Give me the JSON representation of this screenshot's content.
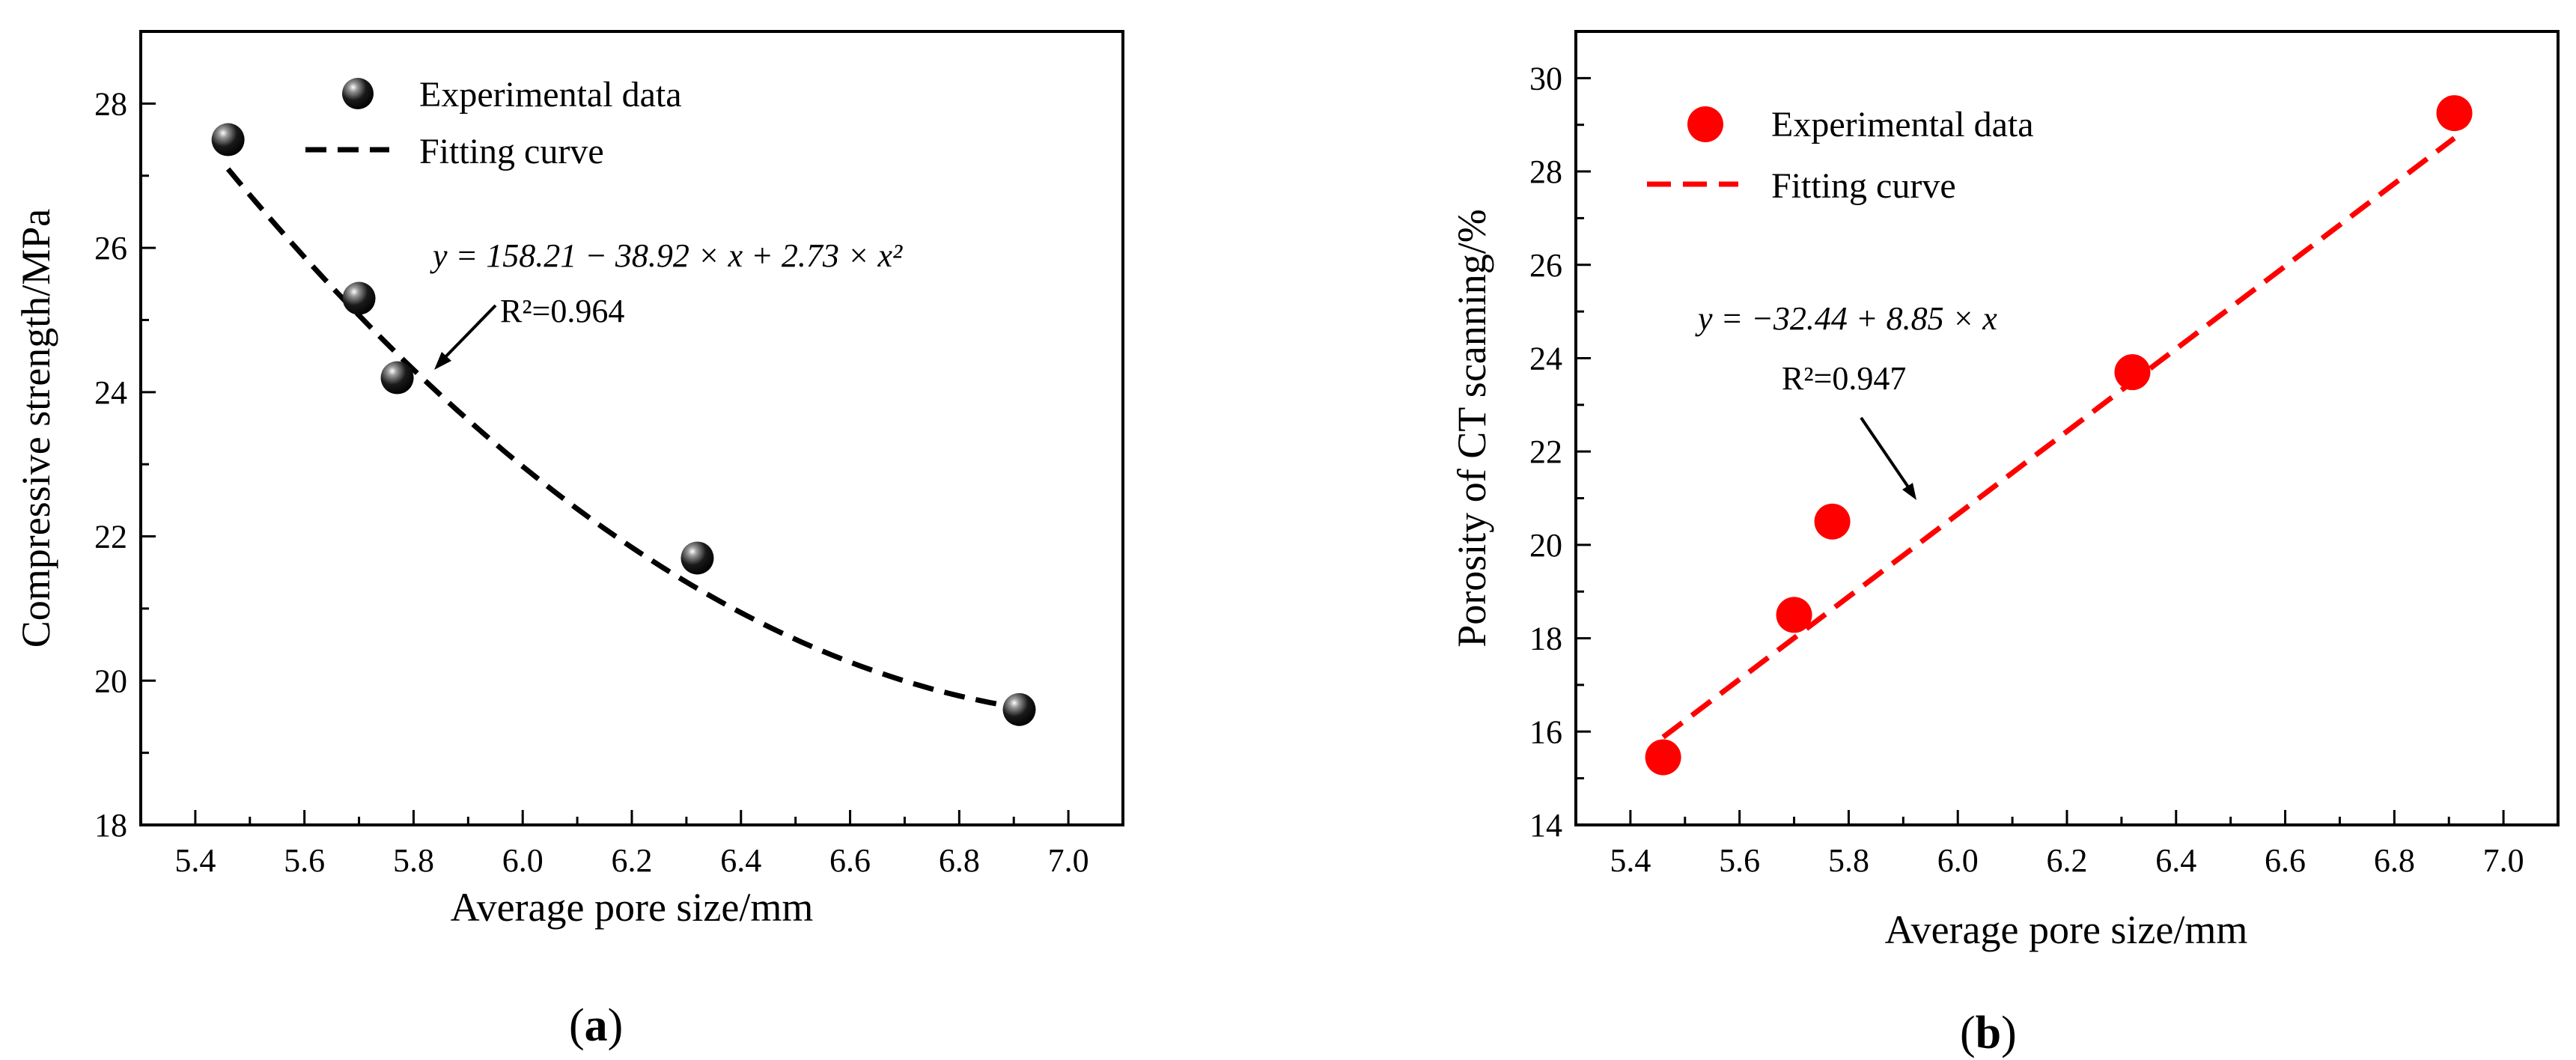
{
  "chart_data": [
    {
      "type": "scatter",
      "panel_label": "a",
      "xlabel": "Average pore size/mm",
      "ylabel": "Compressive strength/MPa",
      "xlim": [
        5.3,
        7.1
      ],
      "ylim": [
        18,
        29
      ],
      "xticks": [
        "5.4",
        "5.6",
        "5.8",
        "6.0",
        "6.2",
        "6.4",
        "6.6",
        "6.8",
        "7.0"
      ],
      "yticks": [
        "18",
        "20",
        "22",
        "24",
        "26",
        "28"
      ],
      "series": [
        {
          "name": "Experimental data",
          "marker": "sphere",
          "color": "#111111",
          "points": [
            {
              "x": 5.46,
              "y": 27.5
            },
            {
              "x": 5.7,
              "y": 25.3
            },
            {
              "x": 5.77,
              "y": 24.2
            },
            {
              "x": 6.32,
              "y": 21.7
            },
            {
              "x": 6.91,
              "y": 19.6
            }
          ]
        },
        {
          "name": "Fitting curve",
          "style": "dashed",
          "color": "#000000",
          "fit": {
            "kind": "quadratic",
            "a": 158.21,
            "b": -38.92,
            "c": 2.73,
            "x_range": [
              5.46,
              6.91
            ]
          }
        }
      ],
      "legend": [
        "Experimental data",
        "Fitting curve"
      ],
      "annotation": {
        "equation": "y = 158.21 − 38.92 × x + 2.73 × x²",
        "r2": "R²=0.964"
      }
    },
    {
      "type": "scatter",
      "panel_label": "b",
      "xlabel": "Average pore size/mm",
      "ylabel": "Porosity of CT  scanning/%",
      "xlim": [
        5.3,
        7.1
      ],
      "ylim": [
        14,
        31
      ],
      "xticks": [
        "5.4",
        "5.6",
        "5.8",
        "6.0",
        "6.2",
        "6.4",
        "6.6",
        "6.8",
        "7.0"
      ],
      "yticks": [
        "14",
        "16",
        "18",
        "20",
        "22",
        "24",
        "26",
        "28",
        "30"
      ],
      "series": [
        {
          "name": "Experimental data",
          "marker": "circle",
          "color": "#ff0000",
          "points": [
            {
              "x": 5.46,
              "y": 15.45
            },
            {
              "x": 5.7,
              "y": 18.5
            },
            {
              "x": 5.77,
              "y": 20.5
            },
            {
              "x": 6.32,
              "y": 23.7
            },
            {
              "x": 6.91,
              "y": 29.25
            }
          ]
        },
        {
          "name": "Fitting curve",
          "style": "dashed",
          "color": "#ff0000",
          "fit": {
            "kind": "linear",
            "a": -32.44,
            "b": 8.85,
            "x_range": [
              5.46,
              6.91
            ]
          }
        }
      ],
      "legend": [
        "Experimental data",
        "Fitting curve"
      ],
      "annotation": {
        "equation": "y = −32.44 + 8.85 × x",
        "r2": "R²=0.947"
      }
    }
  ]
}
